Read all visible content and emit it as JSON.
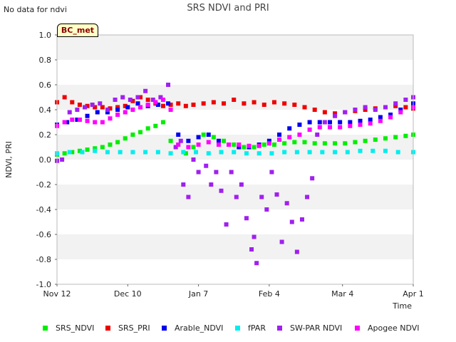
{
  "header": {
    "note": "No data for ndvi",
    "badge": "BC_met"
  },
  "colors": {
    "SRS_NDVI": "#00ee00",
    "SRS_PRI": "#ee0000",
    "Arable_NDVI": "#0000ee",
    "fPAR": "#00eeee",
    "SW-PAR NDVI": "#a020f0",
    "Apogee NDVI": "#ff00ff"
  },
  "chart_data": {
    "type": "scatter",
    "title": "SRS NDVI and PRI",
    "xlabel": "Time",
    "ylabel": "NDVI, PRI",
    "x_range": [
      "2023-11-12",
      "2024-04-01"
    ],
    "x_ticks": [
      "Nov 12",
      "Dec 10",
      "Jan 7",
      "Feb 4",
      "Mar 4",
      "Apr 1"
    ],
    "x_tick_dates": [
      "2023-11-12",
      "2023-12-10",
      "2024-01-07",
      "2024-02-04",
      "2024-03-04",
      "2024-04-01"
    ],
    "ylim": [
      -1.0,
      1.0
    ],
    "y_ticks": [
      -1.0,
      -0.8,
      -0.6,
      -0.4,
      -0.2,
      0.0,
      0.2,
      0.4,
      0.6,
      0.8,
      1.0
    ],
    "grid": "horizontal alternating bands",
    "legend_position": "bottom",
    "series": [
      {
        "name": "SRS_NDVI",
        "points": [
          [
            "2023-11-12",
            0.04
          ],
          [
            "2023-11-15",
            0.05
          ],
          [
            "2023-11-18",
            0.06
          ],
          [
            "2023-11-21",
            0.07
          ],
          [
            "2023-11-24",
            0.08
          ],
          [
            "2023-11-27",
            0.09
          ],
          [
            "2023-11-30",
            0.1
          ],
          [
            "2023-12-03",
            0.12
          ],
          [
            "2023-12-06",
            0.14
          ],
          [
            "2023-12-09",
            0.17
          ],
          [
            "2023-12-12",
            0.2
          ],
          [
            "2023-12-15",
            0.22
          ],
          [
            "2023-12-18",
            0.25
          ],
          [
            "2023-12-21",
            0.27
          ],
          [
            "2023-12-24",
            0.3
          ],
          [
            "2023-12-27",
            0.15
          ],
          [
            "2023-12-30",
            0.12
          ],
          [
            "2024-01-02",
            0.05
          ],
          [
            "2024-01-05",
            0.1
          ],
          [
            "2024-01-09",
            0.2
          ],
          [
            "2024-01-13",
            0.18
          ],
          [
            "2024-01-17",
            0.15
          ],
          [
            "2024-01-21",
            0.12
          ],
          [
            "2024-01-25",
            0.1
          ],
          [
            "2024-01-29",
            0.1
          ],
          [
            "2024-02-02",
            0.12
          ],
          [
            "2024-02-06",
            0.12
          ],
          [
            "2024-02-10",
            0.13
          ],
          [
            "2024-02-14",
            0.14
          ],
          [
            "2024-02-18",
            0.14
          ],
          [
            "2024-02-22",
            0.13
          ],
          [
            "2024-02-26",
            0.13
          ],
          [
            "2024-03-01",
            0.13
          ],
          [
            "2024-03-05",
            0.13
          ],
          [
            "2024-03-09",
            0.14
          ],
          [
            "2024-03-13",
            0.15
          ],
          [
            "2024-03-17",
            0.16
          ],
          [
            "2024-03-21",
            0.17
          ],
          [
            "2024-03-25",
            0.18
          ],
          [
            "2024-03-29",
            0.19
          ],
          [
            "2024-04-01",
            0.2
          ]
        ]
      },
      {
        "name": "SRS_PRI",
        "points": [
          [
            "2023-11-12",
            0.46
          ],
          [
            "2023-11-15",
            0.5
          ],
          [
            "2023-11-18",
            0.46
          ],
          [
            "2023-11-21",
            0.44
          ],
          [
            "2023-11-24",
            0.43
          ],
          [
            "2023-11-27",
            0.42
          ],
          [
            "2023-11-30",
            0.42
          ],
          [
            "2023-12-03",
            0.41
          ],
          [
            "2023-12-06",
            0.42
          ],
          [
            "2023-12-09",
            0.43
          ],
          [
            "2023-12-12",
            0.47
          ],
          [
            "2023-12-15",
            0.5
          ],
          [
            "2023-12-18",
            0.48
          ],
          [
            "2023-12-21",
            0.45
          ],
          [
            "2023-12-24",
            0.43
          ],
          [
            "2023-12-27",
            0.44
          ],
          [
            "2023-12-30",
            0.45
          ],
          [
            "2024-01-02",
            0.43
          ],
          [
            "2024-01-05",
            0.44
          ],
          [
            "2024-01-09",
            0.45
          ],
          [
            "2024-01-13",
            0.46
          ],
          [
            "2024-01-17",
            0.45
          ],
          [
            "2024-01-21",
            0.48
          ],
          [
            "2024-01-25",
            0.45
          ],
          [
            "2024-01-29",
            0.46
          ],
          [
            "2024-02-02",
            0.44
          ],
          [
            "2024-02-06",
            0.46
          ],
          [
            "2024-02-10",
            0.45
          ],
          [
            "2024-02-14",
            0.44
          ],
          [
            "2024-02-18",
            0.42
          ],
          [
            "2024-02-22",
            0.4
          ],
          [
            "2024-02-26",
            0.38
          ],
          [
            "2024-03-01",
            0.37
          ],
          [
            "2024-03-05",
            0.38
          ],
          [
            "2024-03-09",
            0.39
          ],
          [
            "2024-03-13",
            0.4
          ],
          [
            "2024-03-17",
            0.41
          ],
          [
            "2024-03-21",
            0.42
          ],
          [
            "2024-03-25",
            0.43
          ],
          [
            "2024-03-29",
            0.42
          ],
          [
            "2024-04-01",
            0.41
          ]
        ]
      },
      {
        "name": "Arable_NDVI",
        "points": [
          [
            "2023-11-12",
            0.28
          ],
          [
            "2023-11-16",
            0.3
          ],
          [
            "2023-11-20",
            0.32
          ],
          [
            "2023-11-24",
            0.35
          ],
          [
            "2023-11-28",
            0.38
          ],
          [
            "2023-12-02",
            0.38
          ],
          [
            "2023-12-06",
            0.4
          ],
          [
            "2023-12-10",
            0.42
          ],
          [
            "2023-12-14",
            0.45
          ],
          [
            "2023-12-18",
            0.43
          ],
          [
            "2023-12-22",
            0.44
          ],
          [
            "2023-12-26",
            0.45
          ],
          [
            "2023-12-30",
            0.2
          ],
          [
            "2024-01-03",
            0.15
          ],
          [
            "2024-01-07",
            0.18
          ],
          [
            "2024-01-11",
            0.2
          ],
          [
            "2024-01-15",
            0.15
          ],
          [
            "2024-01-19",
            0.12
          ],
          [
            "2024-01-23",
            0.1
          ],
          [
            "2024-01-27",
            0.1
          ],
          [
            "2024-01-31",
            0.12
          ],
          [
            "2024-02-04",
            0.15
          ],
          [
            "2024-02-08",
            0.2
          ],
          [
            "2024-02-12",
            0.25
          ],
          [
            "2024-02-16",
            0.28
          ],
          [
            "2024-02-20",
            0.3
          ],
          [
            "2024-02-24",
            0.3
          ],
          [
            "2024-02-28",
            0.3
          ],
          [
            "2024-03-03",
            0.3
          ],
          [
            "2024-03-07",
            0.3
          ],
          [
            "2024-03-11",
            0.31
          ],
          [
            "2024-03-15",
            0.32
          ],
          [
            "2024-03-19",
            0.34
          ],
          [
            "2024-03-23",
            0.36
          ],
          [
            "2024-03-27",
            0.4
          ],
          [
            "2024-04-01",
            0.45
          ]
        ]
      },
      {
        "name": "fPAR",
        "points": [
          [
            "2023-11-12",
            0.05
          ],
          [
            "2023-11-17",
            0.06
          ],
          [
            "2023-11-22",
            0.06
          ],
          [
            "2023-11-27",
            0.07
          ],
          [
            "2023-12-02",
            0.06
          ],
          [
            "2023-12-07",
            0.06
          ],
          [
            "2023-12-12",
            0.06
          ],
          [
            "2023-12-17",
            0.06
          ],
          [
            "2023-12-22",
            0.06
          ],
          [
            "2023-12-27",
            0.05
          ],
          [
            "2024-01-01",
            0.06
          ],
          [
            "2024-01-06",
            0.06
          ],
          [
            "2024-01-11",
            0.05
          ],
          [
            "2024-01-16",
            0.06
          ],
          [
            "2024-01-21",
            0.06
          ],
          [
            "2024-01-26",
            0.05
          ],
          [
            "2024-01-31",
            0.05
          ],
          [
            "2024-02-05",
            0.05
          ],
          [
            "2024-02-10",
            0.06
          ],
          [
            "2024-02-15",
            0.06
          ],
          [
            "2024-02-20",
            0.06
          ],
          [
            "2024-02-25",
            0.06
          ],
          [
            "2024-03-01",
            0.06
          ],
          [
            "2024-03-06",
            0.06
          ],
          [
            "2024-03-11",
            0.07
          ],
          [
            "2024-03-16",
            0.07
          ],
          [
            "2024-03-21",
            0.07
          ],
          [
            "2024-03-26",
            0.06
          ],
          [
            "2024-04-01",
            0.06
          ]
        ]
      },
      {
        "name": "SW-PAR NDVI",
        "points": [
          [
            "2023-11-12",
            -0.01
          ],
          [
            "2023-11-14",
            0.0
          ],
          [
            "2023-11-17",
            0.38
          ],
          [
            "2023-11-20",
            0.4
          ],
          [
            "2023-11-23",
            0.42
          ],
          [
            "2023-11-26",
            0.44
          ],
          [
            "2023-11-29",
            0.45
          ],
          [
            "2023-12-02",
            0.4
          ],
          [
            "2023-12-05",
            0.48
          ],
          [
            "2023-12-08",
            0.5
          ],
          [
            "2023-12-11",
            0.48
          ],
          [
            "2023-12-14",
            0.5
          ],
          [
            "2023-12-17",
            0.55
          ],
          [
            "2023-12-20",
            0.48
          ],
          [
            "2023-12-23",
            0.5
          ],
          [
            "2023-12-26",
            0.6
          ],
          [
            "2023-12-29",
            0.1
          ],
          [
            "2023-12-31",
            0.15
          ],
          [
            "2024-01-01",
            -0.2
          ],
          [
            "2024-01-03",
            -0.3
          ],
          [
            "2024-01-05",
            0.0
          ],
          [
            "2024-01-07",
            -0.1
          ],
          [
            "2024-01-10",
            -0.05
          ],
          [
            "2024-01-12",
            -0.2
          ],
          [
            "2024-01-14",
            -0.1
          ],
          [
            "2024-01-16",
            -0.25
          ],
          [
            "2024-01-18",
            -0.52
          ],
          [
            "2024-01-20",
            -0.1
          ],
          [
            "2024-01-22",
            -0.3
          ],
          [
            "2024-01-24",
            -0.2
          ],
          [
            "2024-01-26",
            -0.47
          ],
          [
            "2024-01-28",
            -0.72
          ],
          [
            "2024-01-29",
            -0.62
          ],
          [
            "2024-01-30",
            -0.83
          ],
          [
            "2024-02-01",
            -0.3
          ],
          [
            "2024-02-03",
            -0.4
          ],
          [
            "2024-02-05",
            -0.1
          ],
          [
            "2024-02-07",
            -0.28
          ],
          [
            "2024-02-09",
            -0.66
          ],
          [
            "2024-02-11",
            -0.35
          ],
          [
            "2024-02-13",
            -0.5
          ],
          [
            "2024-02-15",
            -0.74
          ],
          [
            "2024-02-17",
            -0.48
          ],
          [
            "2024-02-19",
            -0.3
          ],
          [
            "2024-02-21",
            -0.15
          ],
          [
            "2024-02-23",
            0.2
          ],
          [
            "2024-02-26",
            0.3
          ],
          [
            "2024-03-01",
            0.35
          ],
          [
            "2024-03-05",
            0.38
          ],
          [
            "2024-03-09",
            0.4
          ],
          [
            "2024-03-13",
            0.42
          ],
          [
            "2024-03-17",
            0.4
          ],
          [
            "2024-03-21",
            0.42
          ],
          [
            "2024-03-25",
            0.45
          ],
          [
            "2024-03-29",
            0.48
          ],
          [
            "2024-04-01",
            0.5
          ]
        ]
      },
      {
        "name": "Apogee NDVI",
        "points": [
          [
            "2023-11-12",
            0.27
          ],
          [
            "2023-11-15",
            0.3
          ],
          [
            "2023-11-18",
            0.32
          ],
          [
            "2023-11-21",
            0.32
          ],
          [
            "2023-11-24",
            0.31
          ],
          [
            "2023-11-27",
            0.3
          ],
          [
            "2023-11-30",
            0.3
          ],
          [
            "2023-12-03",
            0.33
          ],
          [
            "2023-12-06",
            0.36
          ],
          [
            "2023-12-09",
            0.38
          ],
          [
            "2023-12-12",
            0.4
          ],
          [
            "2023-12-15",
            0.42
          ],
          [
            "2023-12-18",
            0.44
          ],
          [
            "2023-12-21",
            0.46
          ],
          [
            "2023-12-24",
            0.48
          ],
          [
            "2023-12-27",
            0.4
          ],
          [
            "2023-12-30",
            0.12
          ],
          [
            "2024-01-03",
            0.1
          ],
          [
            "2024-01-07",
            0.12
          ],
          [
            "2024-01-11",
            0.14
          ],
          [
            "2024-01-15",
            0.12
          ],
          [
            "2024-01-19",
            0.12
          ],
          [
            "2024-01-23",
            0.12
          ],
          [
            "2024-01-27",
            0.11
          ],
          [
            "2024-01-31",
            0.11
          ],
          [
            "2024-02-04",
            0.13
          ],
          [
            "2024-02-08",
            0.16
          ],
          [
            "2024-02-12",
            0.18
          ],
          [
            "2024-02-16",
            0.2
          ],
          [
            "2024-02-20",
            0.24
          ],
          [
            "2024-02-24",
            0.26
          ],
          [
            "2024-02-28",
            0.26
          ],
          [
            "2024-03-03",
            0.26
          ],
          [
            "2024-03-07",
            0.27
          ],
          [
            "2024-03-11",
            0.28
          ],
          [
            "2024-03-15",
            0.29
          ],
          [
            "2024-03-19",
            0.31
          ],
          [
            "2024-03-23",
            0.34
          ],
          [
            "2024-03-27",
            0.38
          ],
          [
            "2024-04-01",
            0.42
          ]
        ]
      }
    ]
  }
}
